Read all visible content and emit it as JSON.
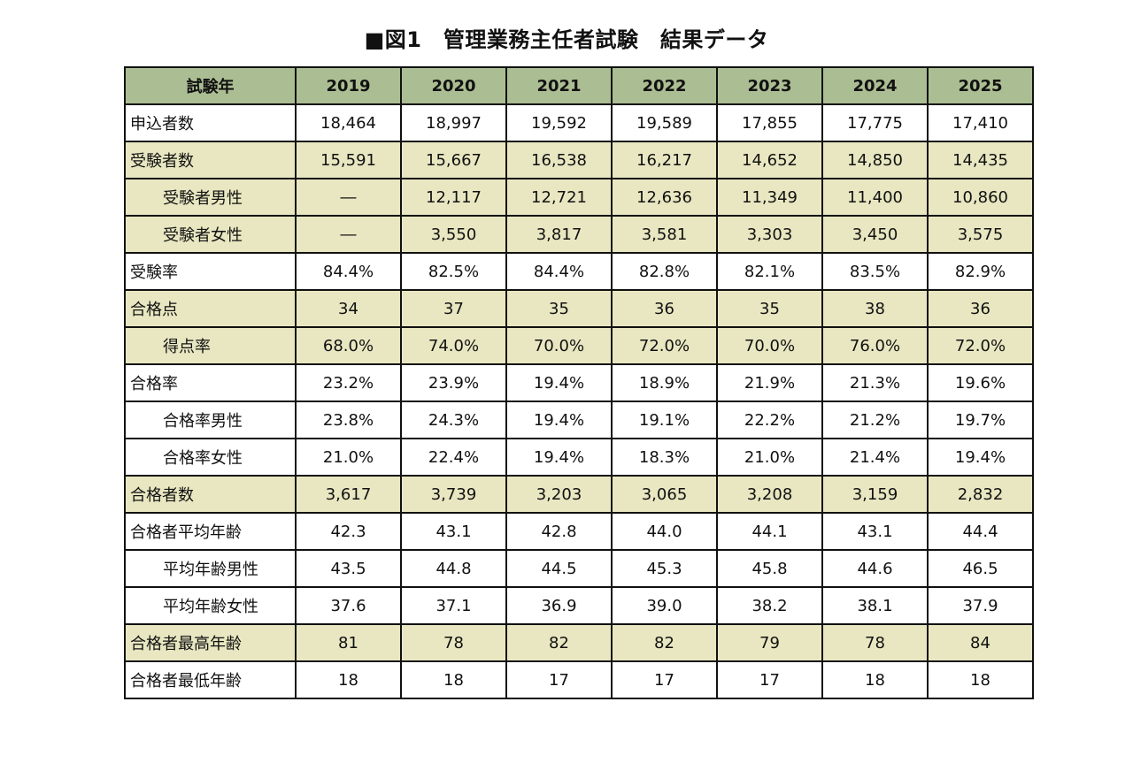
{
  "title": "■図1　管理業務主任者試験　結果データ",
  "header": [
    "試験年",
    "2019",
    "2020",
    "2021",
    "2022",
    "2023",
    "2024",
    "2025"
  ],
  "rows": [
    {
      "label": "申込者数",
      "indent": false,
      "shaded": false,
      "values": [
        "18,464",
        "18,997",
        "19,592",
        "19,589",
        "17,855",
        "17,775",
        "17,410"
      ]
    },
    {
      "label": "受験者数",
      "indent": false,
      "shaded": true,
      "values": [
        "15,591",
        "15,667",
        "16,538",
        "16,217",
        "14,652",
        "14,850",
        "14,435"
      ]
    },
    {
      "label": "受験者男性",
      "indent": true,
      "shaded": true,
      "values": [
        "―",
        "12,117",
        "12,721",
        "12,636",
        "11,349",
        "11,400",
        "10,860"
      ]
    },
    {
      "label": "受験者女性",
      "indent": true,
      "shaded": true,
      "values": [
        "―",
        "3,550",
        "3,817",
        "3,581",
        "3,303",
        "3,450",
        "3,575"
      ]
    },
    {
      "label": "受験率",
      "indent": false,
      "shaded": false,
      "values": [
        "84.4%",
        "82.5%",
        "84.4%",
        "82.8%",
        "82.1%",
        "83.5%",
        "82.9%"
      ]
    },
    {
      "label": "合格点",
      "indent": false,
      "shaded": true,
      "values": [
        "34",
        "37",
        "35",
        "36",
        "35",
        "38",
        "36"
      ]
    },
    {
      "label": "得点率",
      "indent": true,
      "shaded": true,
      "values": [
        "68.0%",
        "74.0%",
        "70.0%",
        "72.0%",
        "70.0%",
        "76.0%",
        "72.0%"
      ]
    },
    {
      "label": "合格率",
      "indent": false,
      "shaded": false,
      "values": [
        "23.2%",
        "23.9%",
        "19.4%",
        "18.9%",
        "21.9%",
        "21.3%",
        "19.6%"
      ]
    },
    {
      "label": "合格率男性",
      "indent": true,
      "shaded": false,
      "values": [
        "23.8%",
        "24.3%",
        "19.4%",
        "19.1%",
        "22.2%",
        "21.2%",
        "19.7%"
      ]
    },
    {
      "label": "合格率女性",
      "indent": true,
      "shaded": false,
      "values": [
        "21.0%",
        "22.4%",
        "19.4%",
        "18.3%",
        "21.0%",
        "21.4%",
        "19.4%"
      ]
    },
    {
      "label": "合格者数",
      "indent": false,
      "shaded": true,
      "values": [
        "3,617",
        "3,739",
        "3,203",
        "3,065",
        "3,208",
        "3,159",
        "2,832"
      ]
    },
    {
      "label": "合格者平均年齢",
      "indent": false,
      "shaded": false,
      "values": [
        "42.3",
        "43.1",
        "42.8",
        "44.0",
        "44.1",
        "43.1",
        "44.4"
      ]
    },
    {
      "label": "平均年齢男性",
      "indent": true,
      "shaded": false,
      "values": [
        "43.5",
        "44.8",
        "44.5",
        "45.3",
        "45.8",
        "44.6",
        "46.5"
      ]
    },
    {
      "label": "平均年齢女性",
      "indent": true,
      "shaded": false,
      "values": [
        "37.6",
        "37.1",
        "36.9",
        "39.0",
        "38.2",
        "38.1",
        "37.9"
      ]
    },
    {
      "label": "合格者最高年齢",
      "indent": false,
      "shaded": true,
      "values": [
        "81",
        "78",
        "82",
        "82",
        "79",
        "78",
        "84"
      ]
    },
    {
      "label": "合格者最低年齢",
      "indent": false,
      "shaded": false,
      "values": [
        "18",
        "18",
        "17",
        "17",
        "17",
        "18",
        "18"
      ]
    }
  ],
  "colors": {
    "header_bg": "#abbd92",
    "shaded_bg": "#e8e7c1",
    "plain_bg": "#ffffff",
    "border": "#111111"
  }
}
